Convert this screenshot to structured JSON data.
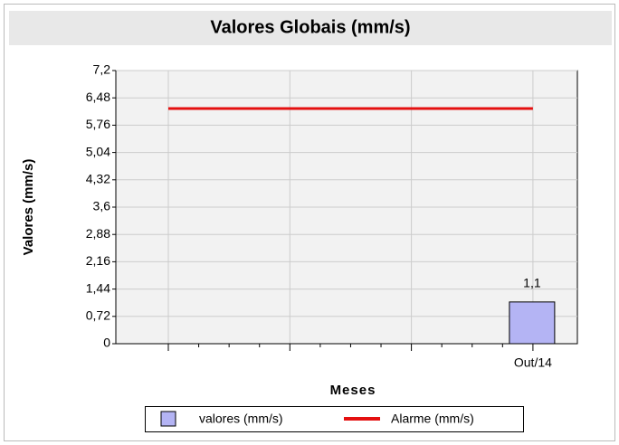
{
  "chart_data": {
    "type": "bar_line",
    "title": "Valores Globais (mm/s)",
    "y_label": "Valores  (mm/s)",
    "x_label": "Meses",
    "categories": [
      null,
      null,
      null,
      "Out/14"
    ],
    "series": [
      {
        "name": "valores (mm/s)",
        "type": "bar",
        "color": "#b4b4f4",
        "values": [
          null,
          null,
          null,
          1.1
        ],
        "value_labels": [
          null,
          null,
          null,
          "1,1"
        ]
      },
      {
        "name": "Alarme (mm/s)",
        "type": "line",
        "color": "#e41010",
        "values": [
          6.2,
          6.2,
          6.2,
          6.2
        ]
      }
    ],
    "ylim": [
      0,
      7.2
    ],
    "yticks": [
      0,
      {
        "value": 0.72,
        "label": "0,72"
      },
      {
        "value": 1.44,
        "label": "1,44"
      },
      {
        "value": 2.16,
        "label": "2,16"
      },
      {
        "value": 2.88,
        "label": "2,88"
      },
      {
        "value": 3.6,
        "label": "3,6"
      },
      {
        "value": 4.32,
        "label": "4,32"
      },
      {
        "value": 5.04,
        "label": "5,04"
      },
      {
        "value": 5.76,
        "label": "5,76"
      },
      {
        "value": 6.48,
        "label": "6,48"
      },
      {
        "value": 7.2,
        "label": "7,2"
      }
    ],
    "grid": true
  }
}
